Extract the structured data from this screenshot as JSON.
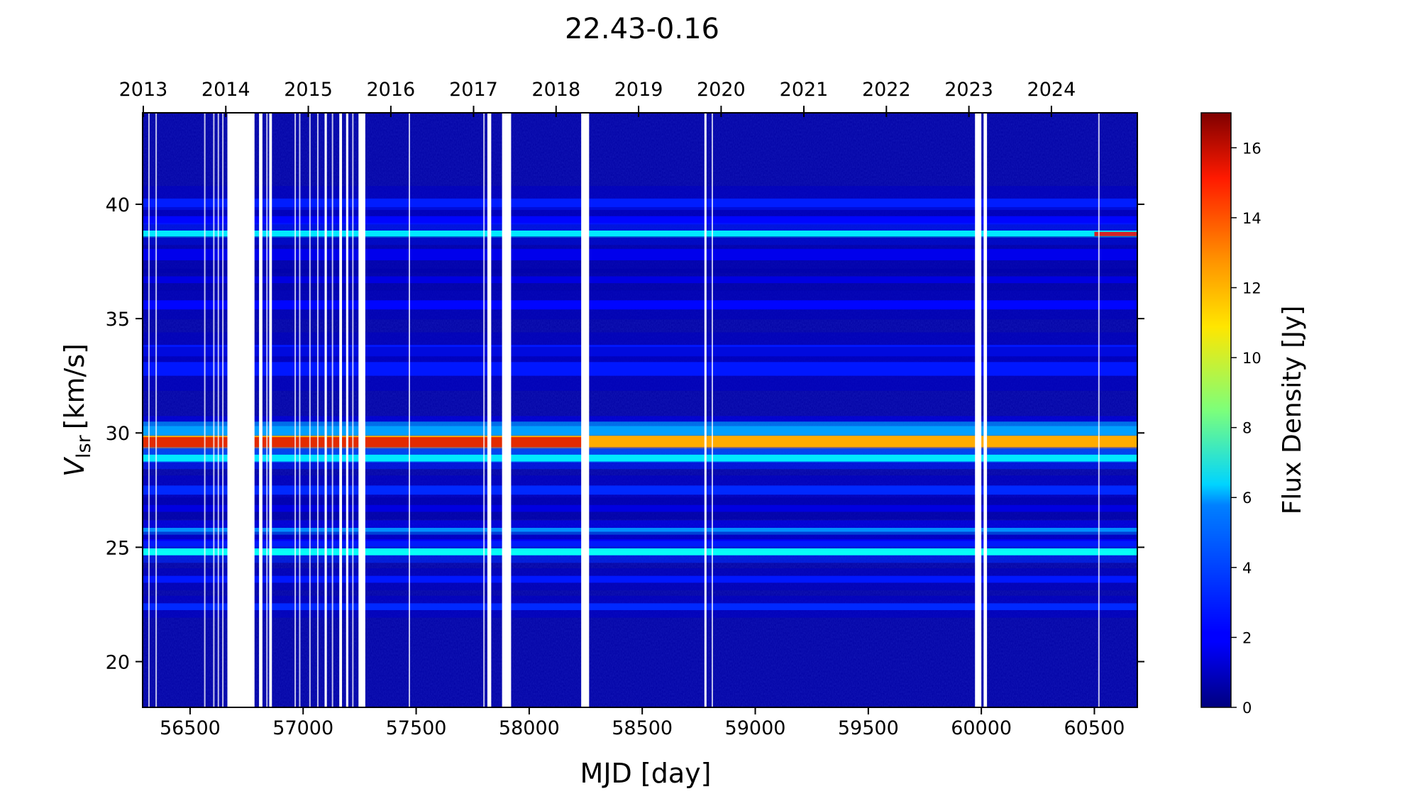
{
  "chart_data": {
    "type": "heatmap",
    "title": "22.43-0.16",
    "xlabel": "MJD [day]",
    "ylabel_main": "V",
    "ylabel_sub": "lsr",
    "ylabel_unit": "[km/s]",
    "colorbar_label": "Flux Density [Jy]",
    "colormap": "jet",
    "xlim": [
      56290,
      60690
    ],
    "ylim": [
      18,
      44
    ],
    "clim": [
      0,
      17
    ],
    "x_ticks": [
      56500,
      57000,
      57500,
      58000,
      58500,
      59000,
      59500,
      60000,
      60500
    ],
    "y_ticks": [
      20,
      25,
      30,
      35,
      40
    ],
    "colorbar_ticks": [
      0,
      2,
      4,
      6,
      8,
      10,
      12,
      14,
      16
    ],
    "top_axis_years": [
      {
        "label": "2013",
        "mjd": 56293
      },
      {
        "label": "2014",
        "mjd": 56658
      },
      {
        "label": "2015",
        "mjd": 57023
      },
      {
        "label": "2016",
        "mjd": 57388
      },
      {
        "label": "2017",
        "mjd": 57754
      },
      {
        "label": "2018",
        "mjd": 58119
      },
      {
        "label": "2019",
        "mjd": 58484
      },
      {
        "label": "2020",
        "mjd": 58849
      },
      {
        "label": "2021",
        "mjd": 59215
      },
      {
        "label": "2022",
        "mjd": 59580
      },
      {
        "label": "2023",
        "mjd": 59945
      },
      {
        "label": "2024",
        "mjd": 60310
      }
    ],
    "emission_bands": [
      {
        "v": 40.0,
        "flux": 2.6,
        "width": 0.25
      },
      {
        "v": 39.3,
        "flux": 2.2,
        "width": 0.18
      },
      {
        "v": 38.7,
        "flux": 6.0,
        "width": 0.15
      },
      {
        "v": 37.8,
        "flux": 1.8,
        "width": 0.25
      },
      {
        "v": 36.7,
        "flux": 1.6,
        "width": 0.15
      },
      {
        "v": 35.6,
        "flux": 2.2,
        "width": 0.2
      },
      {
        "v": 33.6,
        "flux": 2.5,
        "width": 0.25
      },
      {
        "v": 32.8,
        "flux": 2.5,
        "width": 0.3
      },
      {
        "v": 30.1,
        "flux": 4.0,
        "width": 0.2
      },
      {
        "v": 29.6,
        "flux": 12.0,
        "width": 0.28
      },
      {
        "v": 28.9,
        "flux": 6.0,
        "width": 0.15
      },
      {
        "v": 27.5,
        "flux": 2.8,
        "width": 0.2
      },
      {
        "v": 26.7,
        "flux": 1.6,
        "width": 0.15
      },
      {
        "v": 25.7,
        "flux": 4.5,
        "width": 0.15
      },
      {
        "v": 25.2,
        "flux": 2.0,
        "width": 0.15
      },
      {
        "v": 24.8,
        "flux": 6.5,
        "width": 0.15
      },
      {
        "v": 23.6,
        "flux": 2.5,
        "width": 0.15
      },
      {
        "v": 22.4,
        "flux": 2.8,
        "width": 0.15
      }
    ],
    "peak_feature": {
      "v": 29.6,
      "flux": 15.5,
      "mjd_ranges": [
        [
          56290,
          56670
        ],
        [
          56780,
          57280
        ],
        [
          57280,
          58250
        ]
      ]
    },
    "late_peak_feature": {
      "v": 38.7,
      "flux": 15.0,
      "mjd_ranges": [
        [
          60500,
          60690
        ]
      ]
    },
    "data_gaps_mjd": [
      [
        56665,
        56785
      ],
      [
        56805,
        56820
      ],
      [
        56850,
        56862
      ],
      [
        57095,
        57105
      ],
      [
        57160,
        57172
      ],
      [
        57190,
        57200
      ],
      [
        57245,
        57275
      ],
      [
        57815,
        57832
      ],
      [
        57880,
        57920
      ],
      [
        58230,
        58265
      ],
      [
        58775,
        58784
      ],
      [
        59972,
        60000
      ],
      [
        60010,
        60025
      ]
    ],
    "thin_gaps_mjd": [
      56318,
      56350,
      56565,
      56605,
      56625,
      56645,
      56840,
      56965,
      56985,
      57030,
      57065,
      57130,
      57220,
      57470,
      57800,
      58780,
      58810,
      60520
    ]
  }
}
